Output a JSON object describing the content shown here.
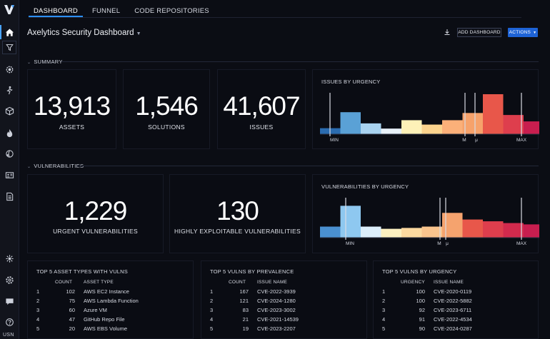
{
  "sidebar": {
    "icons": [
      {
        "name": "home-icon",
        "active": true
      },
      {
        "name": "filter-icon"
      },
      {
        "name": "settings-gear-icon"
      },
      {
        "name": "person-walking-icon"
      },
      {
        "name": "cube-icon"
      },
      {
        "name": "flame-icon"
      },
      {
        "name": "network-icon"
      },
      {
        "name": "id-card-icon"
      },
      {
        "name": "document-list-icon"
      },
      {
        "name": "integrations-icon"
      },
      {
        "name": "settings-icon"
      },
      {
        "name": "chat-icon"
      },
      {
        "name": "help-icon"
      }
    ],
    "user_initials": "USN"
  },
  "tabs": [
    {
      "label": "DASHBOARD",
      "active": true
    },
    {
      "label": "FUNNEL"
    },
    {
      "label": "CODE REPOSITORIES"
    }
  ],
  "header": {
    "title": "Axelytics Security Dashboard",
    "add_dashboard": "ADD DASHBOARD",
    "actions": "ACTIONS"
  },
  "summary": {
    "section_label": "SUMMARY",
    "kpis": [
      {
        "value": "13,913",
        "label": "ASSETS"
      },
      {
        "value": "1,546",
        "label": "SOLUTIONS"
      },
      {
        "value": "41,607",
        "label": "ISSUES"
      }
    ],
    "chart_title": "ISSUES BY URGENCY",
    "chart_labels": {
      "min": "MIN",
      "m": "M",
      "mu": "μ",
      "max": "MAX"
    }
  },
  "vulnerabilities": {
    "section_label": "VULNERABILITIES",
    "kpis": [
      {
        "value": "1,229",
        "label": "URGENT VULNERABILITIES"
      },
      {
        "value": "130",
        "label": "HIGHLY EXPLOITABLE VULNERABILITIES"
      }
    ],
    "chart_title": "VULNERABILITIES BY URGENCY",
    "chart_labels": {
      "min": "MIN",
      "m": "M",
      "mu": "μ",
      "max": "MAX"
    }
  },
  "tables": {
    "asset_types": {
      "title": "TOP 5 ASSET TYPES WITH VULNS",
      "headers": [
        "",
        "COUNT",
        "ASSET TYPE"
      ],
      "rows": [
        [
          "1",
          "102",
          "AWS EC2 Instance"
        ],
        [
          "2",
          "75",
          "AWS Lambda Function"
        ],
        [
          "3",
          "60",
          "Azure VM"
        ],
        [
          "4",
          "47",
          "GitHub Repo File"
        ],
        [
          "5",
          "20",
          "AWS EBS Volume"
        ]
      ]
    },
    "prevalence": {
      "title": "TOP 5 VULNS BY PREVALENCE",
      "headers": [
        "",
        "COUNT",
        "ISSUE NAME"
      ],
      "rows": [
        [
          "1",
          "167",
          "CVE-2022-3939"
        ],
        [
          "2",
          "121",
          "CVE-2024-1280"
        ],
        [
          "3",
          "83",
          "CVE-2023-3002"
        ],
        [
          "4",
          "21",
          "CVE-2021-14539"
        ],
        [
          "5",
          "19",
          "CVE-2023-2207"
        ]
      ]
    },
    "urgency": {
      "title": "TOP 5 VULNS BY URGENCY",
      "headers": [
        "",
        "URGENCY",
        "ISSUE NAME"
      ],
      "rows": [
        [
          "1",
          "100",
          "CVE-2020-0119"
        ],
        [
          "2",
          "100",
          "CVE-2022-5882"
        ],
        [
          "3",
          "92",
          "CVE-2023-6711"
        ],
        [
          "4",
          "91",
          "CVE-2022-4534"
        ],
        [
          "5",
          "90",
          "CVE-2024-0287"
        ]
      ]
    }
  },
  "chart_data": [
    {
      "type": "bar",
      "title": "ISSUES BY URGENCY",
      "values": [
        0.15,
        0.55,
        0.27,
        0.14,
        0.35,
        0.24,
        0.35,
        0.53,
        1.0,
        0.48,
        0.32
      ],
      "colors": [
        "#2b6cb0",
        "#5aa1d6",
        "#a9d3f0",
        "#e8f1f8",
        "#fdf1b8",
        "#fbd38d",
        "#fbb079",
        "#f6a26b",
        "#e8574a",
        "#de3e4d",
        "#c81e4f"
      ],
      "markers": [
        "MIN",
        "M",
        "μ",
        "MAX"
      ]
    },
    {
      "type": "bar",
      "title": "VULNERABILITIES BY URGENCY",
      "values": [
        0.25,
        0.72,
        0.25,
        0.2,
        0.22,
        0.25,
        0.56,
        0.41,
        0.37,
        0.33,
        0.3
      ],
      "colors": [
        "#4a90d0",
        "#8ec8f0",
        "#dceefa",
        "#fbf0c0",
        "#fbd9a0",
        "#f9c48d",
        "#f5a36e",
        "#e8574a",
        "#de3e4d",
        "#d22a4d",
        "#c81e4f"
      ],
      "markers": [
        "MIN",
        "M",
        "μ",
        "MAX"
      ]
    }
  ]
}
